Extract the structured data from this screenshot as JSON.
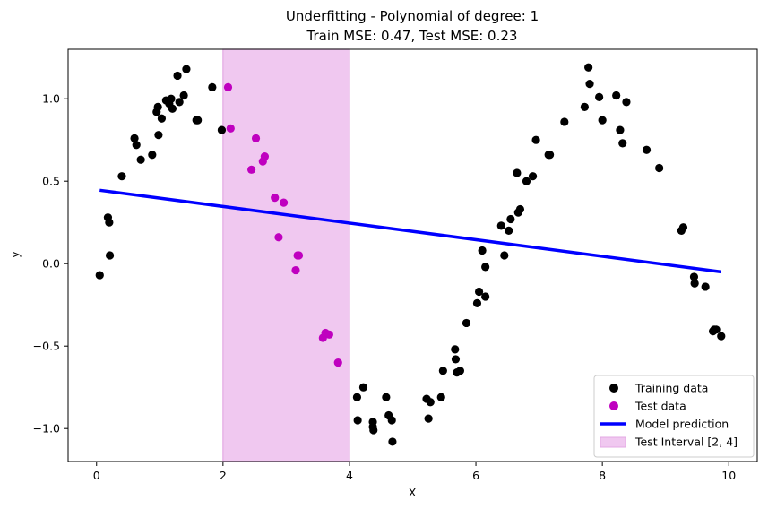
{
  "chart_data": {
    "type": "scatter",
    "title_line1": "Underfitting - Polynomial of degree: 1",
    "title_line2": "Train MSE: 0.47, Test MSE: 0.23",
    "xlabel": "X",
    "ylabel": "y",
    "xlim": [
      -0.45,
      10.45
    ],
    "ylim": [
      -1.2,
      1.3
    ],
    "xticks": [
      0,
      2,
      4,
      6,
      8,
      10
    ],
    "yticks": [
      -1.0,
      -0.5,
      0.0,
      0.5,
      1.0
    ],
    "xtick_labels": [
      "0",
      "2",
      "4",
      "6",
      "8",
      "10"
    ],
    "ytick_labels": [
      "−1.0",
      "−0.5",
      "0.0",
      "0.5",
      "1.0"
    ],
    "legend_position": "lower-right",
    "colors": {
      "training": "#000000",
      "test": "#bf00bf",
      "model": "#0000ff",
      "interval_fill": "#f0c8f0",
      "interval_edge": "#e3a8e3"
    },
    "test_interval": [
      2,
      4
    ],
    "series": [
      {
        "name": "Training data",
        "kind": "scatter",
        "points": [
          [
            0.05,
            -0.07
          ],
          [
            0.18,
            0.28
          ],
          [
            0.2,
            0.25
          ],
          [
            0.21,
            0.05
          ],
          [
            0.4,
            0.53
          ],
          [
            0.6,
            0.76
          ],
          [
            0.63,
            0.72
          ],
          [
            0.7,
            0.63
          ],
          [
            0.88,
            0.66
          ],
          [
            0.95,
            0.92
          ],
          [
            0.97,
            0.95
          ],
          [
            0.98,
            0.78
          ],
          [
            1.03,
            0.88
          ],
          [
            1.1,
            0.99
          ],
          [
            1.15,
            0.97
          ],
          [
            1.18,
            1.0
          ],
          [
            1.2,
            0.94
          ],
          [
            1.28,
            1.14
          ],
          [
            1.31,
            0.98
          ],
          [
            1.38,
            1.02
          ],
          [
            1.42,
            1.18
          ],
          [
            1.58,
            0.87
          ],
          [
            1.6,
            0.87
          ],
          [
            1.83,
            1.07
          ],
          [
            1.98,
            0.81
          ],
          [
            4.12,
            -0.81
          ],
          [
            4.13,
            -0.95
          ],
          [
            4.22,
            -0.75
          ],
          [
            4.37,
            -0.96
          ],
          [
            4.37,
            -0.99
          ],
          [
            4.38,
            -1.01
          ],
          [
            4.58,
            -0.81
          ],
          [
            4.62,
            -0.92
          ],
          [
            4.67,
            -0.95
          ],
          [
            4.68,
            -1.08
          ],
          [
            5.22,
            -0.82
          ],
          [
            5.25,
            -0.94
          ],
          [
            5.28,
            -0.84
          ],
          [
            5.45,
            -0.81
          ],
          [
            5.48,
            -0.65
          ],
          [
            5.67,
            -0.52
          ],
          [
            5.68,
            -0.58
          ],
          [
            5.7,
            -0.66
          ],
          [
            5.75,
            -0.65
          ],
          [
            5.85,
            -0.36
          ],
          [
            6.02,
            -0.24
          ],
          [
            6.05,
            -0.17
          ],
          [
            6.1,
            0.08
          ],
          [
            6.15,
            -0.02
          ],
          [
            6.15,
            -0.2
          ],
          [
            6.4,
            0.23
          ],
          [
            6.45,
            0.05
          ],
          [
            6.52,
            0.2
          ],
          [
            6.55,
            0.27
          ],
          [
            6.65,
            0.55
          ],
          [
            6.67,
            0.31
          ],
          [
            6.7,
            0.33
          ],
          [
            6.8,
            0.5
          ],
          [
            6.9,
            0.53
          ],
          [
            6.95,
            0.75
          ],
          [
            7.15,
            0.66
          ],
          [
            7.17,
            0.66
          ],
          [
            7.4,
            0.86
          ],
          [
            7.72,
            0.95
          ],
          [
            7.78,
            1.19
          ],
          [
            7.8,
            1.09
          ],
          [
            7.95,
            1.01
          ],
          [
            8.0,
            0.87
          ],
          [
            8.22,
            1.02
          ],
          [
            8.28,
            0.81
          ],
          [
            8.32,
            0.73
          ],
          [
            8.38,
            0.98
          ],
          [
            8.7,
            0.69
          ],
          [
            8.9,
            0.58
          ],
          [
            9.25,
            0.2
          ],
          [
            9.28,
            0.22
          ],
          [
            9.45,
            -0.08
          ],
          [
            9.46,
            -0.12
          ],
          [
            9.63,
            -0.14
          ],
          [
            9.75,
            -0.41
          ],
          [
            9.77,
            -0.4
          ],
          [
            9.8,
            -0.4
          ],
          [
            9.88,
            -0.44
          ]
        ]
      },
      {
        "name": "Test data",
        "kind": "scatter",
        "points": [
          [
            2.08,
            1.07
          ],
          [
            2.12,
            0.82
          ],
          [
            2.45,
            0.57
          ],
          [
            2.52,
            0.76
          ],
          [
            2.63,
            0.62
          ],
          [
            2.66,
            0.65
          ],
          [
            2.82,
            0.4
          ],
          [
            2.88,
            0.16
          ],
          [
            2.96,
            0.37
          ],
          [
            3.15,
            -0.04
          ],
          [
            3.18,
            0.05
          ],
          [
            3.2,
            0.05
          ],
          [
            3.58,
            -0.45
          ],
          [
            3.62,
            -0.42
          ],
          [
            3.68,
            -0.43
          ],
          [
            3.82,
            -0.6
          ]
        ]
      },
      {
        "name": "Model prediction",
        "kind": "line",
        "points": [
          [
            0.05,
            0.445
          ],
          [
            9.88,
            -0.05
          ]
        ]
      }
    ],
    "legend_entries": {
      "training": "Training data",
      "test": "Test data",
      "model": "Model prediction",
      "interval": "Test Interval [2, 4]"
    }
  }
}
